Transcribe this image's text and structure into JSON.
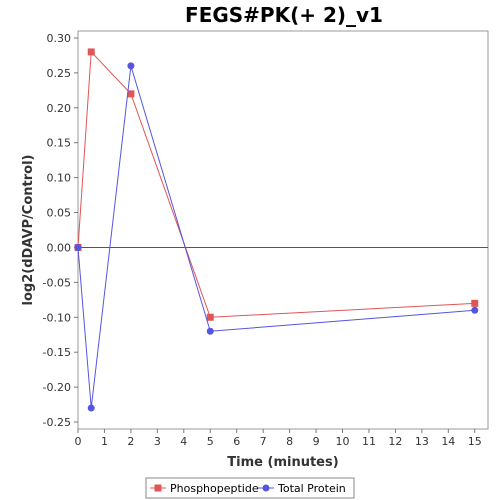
{
  "chart_data": {
    "type": "line",
    "title": "FEGS#PK(+ 2)_v1",
    "xlabel": "Time (minutes)",
    "ylabel": "log2(dDAVP/Control)",
    "xlim": [
      0,
      15.5
    ],
    "ylim": [
      -0.26,
      0.31
    ],
    "x_ticks": [
      0,
      1,
      2,
      3,
      4,
      5,
      6,
      7,
      8,
      9,
      10,
      11,
      12,
      13,
      14,
      15
    ],
    "y_ticks": [
      0.3,
      0.25,
      0.2,
      0.15,
      0.1,
      0.05,
      0.0,
      -0.05,
      -0.1,
      -0.15,
      -0.2,
      -0.25
    ],
    "y_tick_labels": [
      "0.30",
      "0.25",
      "0.20",
      "0.15",
      "0.10",
      "0.05",
      "0.00",
      "-0.05",
      "-0.10",
      "-0.15",
      "-0.20",
      "-0.25"
    ],
    "zero_line": true,
    "grid": false,
    "legend_position": "bottom",
    "series": [
      {
        "name": "Phosphopeptide",
        "color": "#e05555",
        "marker": "square",
        "x": [
          0,
          0.5,
          2,
          5,
          15
        ],
        "y": [
          0.0,
          0.28,
          0.22,
          -0.1,
          -0.08
        ]
      },
      {
        "name": "Total Protein",
        "color": "#5555e0",
        "marker": "circle",
        "x": [
          0,
          0.5,
          2,
          5,
          15
        ],
        "y": [
          0.0,
          -0.23,
          0.26,
          -0.12,
          -0.09
        ]
      }
    ]
  }
}
